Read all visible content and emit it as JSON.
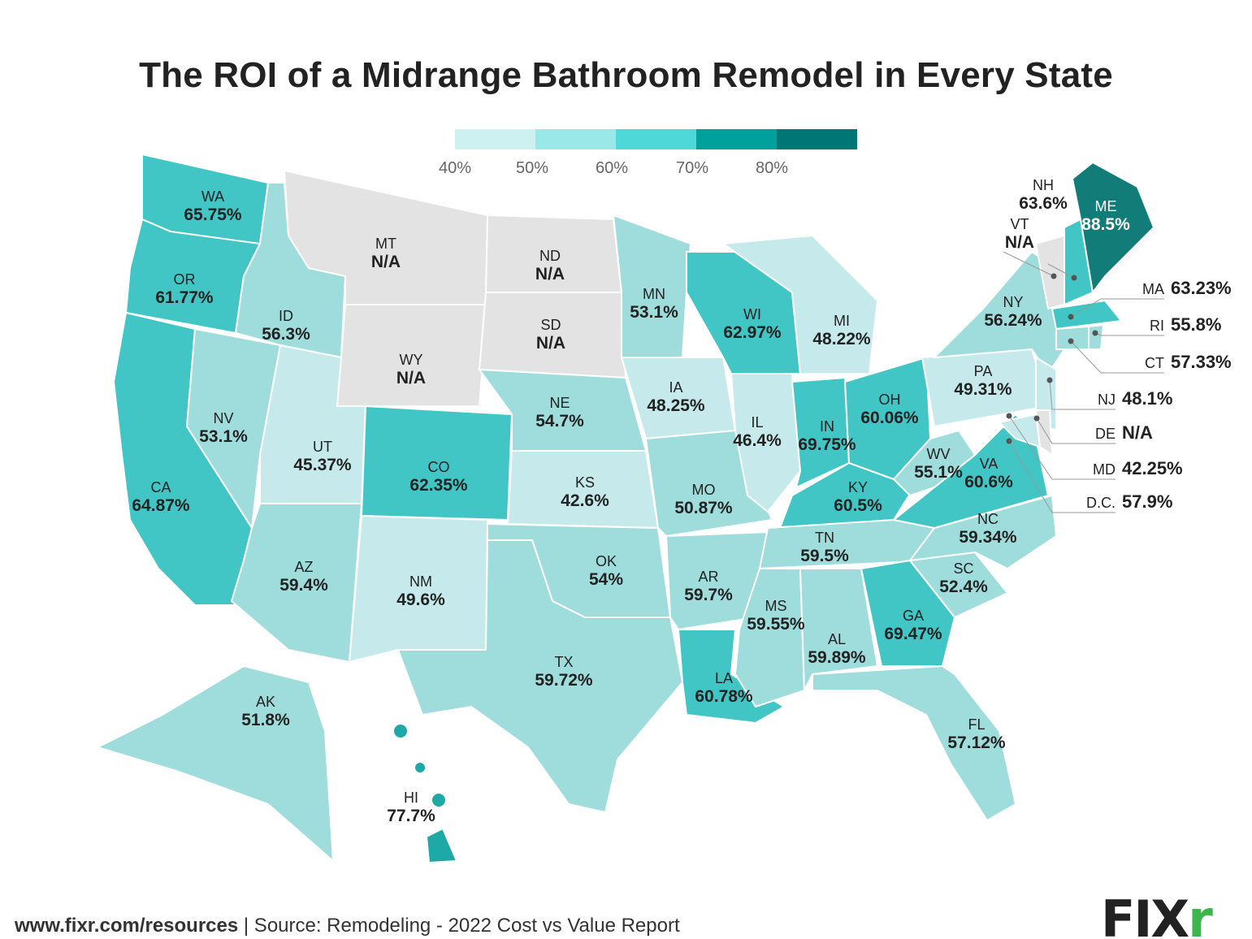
{
  "title": "The ROI of a Midrange Bathroom Remodel in Every State",
  "legend": {
    "labels": [
      "40%",
      "50%",
      "60%",
      "70%",
      "80%"
    ],
    "colors": [
      "#cdf1f1",
      "#9ae8e8",
      "#4fd8d8",
      "#00a09c",
      "#007676"
    ],
    "na_color": "#e3e3e3"
  },
  "states": {
    "WA": {
      "abbr": "WA",
      "value": "65.75%",
      "num": 65.75
    },
    "OR": {
      "abbr": "OR",
      "value": "61.77%",
      "num": 61.77
    },
    "CA": {
      "abbr": "CA",
      "value": "64.87%",
      "num": 64.87
    },
    "NV": {
      "abbr": "NV",
      "value": "53.1%",
      "num": 53.1
    },
    "ID": {
      "abbr": "ID",
      "value": "56.3%",
      "num": 56.3
    },
    "MT": {
      "abbr": "MT",
      "value": "N/A",
      "num": null
    },
    "WY": {
      "abbr": "WY",
      "value": "N/A",
      "num": null
    },
    "UT": {
      "abbr": "UT",
      "value": "45.37%",
      "num": 45.37
    },
    "CO": {
      "abbr": "CO",
      "value": "62.35%",
      "num": 62.35
    },
    "AZ": {
      "abbr": "AZ",
      "value": "59.4%",
      "num": 59.4
    },
    "NM": {
      "abbr": "NM",
      "value": "49.6%",
      "num": 49.6
    },
    "ND": {
      "abbr": "ND",
      "value": "N/A",
      "num": null
    },
    "SD": {
      "abbr": "SD",
      "value": "N/A",
      "num": null
    },
    "NE": {
      "abbr": "NE",
      "value": "54.7%",
      "num": 54.7
    },
    "KS": {
      "abbr": "KS",
      "value": "42.6%",
      "num": 42.6
    },
    "OK": {
      "abbr": "OK",
      "value": "54%",
      "num": 54
    },
    "TX": {
      "abbr": "TX",
      "value": "59.72%",
      "num": 59.72
    },
    "MN": {
      "abbr": "MN",
      "value": "53.1%",
      "num": 53.1
    },
    "IA": {
      "abbr": "IA",
      "value": "48.25%",
      "num": 48.25
    },
    "MO": {
      "abbr": "MO",
      "value": "50.87%",
      "num": 50.87
    },
    "AR": {
      "abbr": "AR",
      "value": "59.7%",
      "num": 59.7
    },
    "LA": {
      "abbr": "LA",
      "value": "60.78%",
      "num": 60.78
    },
    "WI": {
      "abbr": "WI",
      "value": "62.97%",
      "num": 62.97
    },
    "IL": {
      "abbr": "IL",
      "value": "46.4%",
      "num": 46.4
    },
    "MI": {
      "abbr": "MI",
      "value": "48.22%",
      "num": 48.22
    },
    "IN": {
      "abbr": "IN",
      "value": "69.75%",
      "num": 69.75
    },
    "OH": {
      "abbr": "OH",
      "value": "60.06%",
      "num": 60.06
    },
    "KY": {
      "abbr": "KY",
      "value": "60.5%",
      "num": 60.5
    },
    "TN": {
      "abbr": "TN",
      "value": "59.5%",
      "num": 59.5
    },
    "MS": {
      "abbr": "MS",
      "value": "59.55%",
      "num": 59.55
    },
    "AL": {
      "abbr": "AL",
      "value": "59.89%",
      "num": 59.89
    },
    "GA": {
      "abbr": "GA",
      "value": "69.47%",
      "num": 69.47
    },
    "FL": {
      "abbr": "FL",
      "value": "57.12%",
      "num": 57.12
    },
    "SC": {
      "abbr": "SC",
      "value": "52.4%",
      "num": 52.4
    },
    "NC": {
      "abbr": "NC",
      "value": "59.34%",
      "num": 59.34
    },
    "VA": {
      "abbr": "VA",
      "value": "60.6%",
      "num": 60.6
    },
    "WV": {
      "abbr": "WV",
      "value": "55.1%",
      "num": 55.1
    },
    "PA": {
      "abbr": "PA",
      "value": "49.31%",
      "num": 49.31
    },
    "NY": {
      "abbr": "NY",
      "value": "56.24%",
      "num": 56.24
    },
    "NH": {
      "abbr": "NH",
      "value": "63.6%",
      "num": 63.6
    },
    "VT": {
      "abbr": "VT",
      "value": "N/A",
      "num": null
    },
    "ME": {
      "abbr": "ME",
      "value": "88.5%",
      "num": 88.5
    },
    "AK": {
      "abbr": "AK",
      "value": "51.8%",
      "num": 51.8
    },
    "HI": {
      "abbr": "HI",
      "value": "77.7%",
      "num": 77.7
    },
    "MA": {
      "abbr": "MA",
      "value": "63.23%",
      "num": 63.23
    },
    "RI": {
      "abbr": "RI",
      "value": "55.8%",
      "num": 55.8
    },
    "CT": {
      "abbr": "CT",
      "value": "57.33%",
      "num": 57.33
    },
    "NJ": {
      "abbr": "NJ",
      "value": "48.1%",
      "num": 48.1
    },
    "DE": {
      "abbr": "DE",
      "value": "N/A",
      "num": null
    },
    "MD": {
      "abbr": "MD",
      "value": "42.25%",
      "num": 42.25
    },
    "DC": {
      "abbr": "D.C.",
      "value": "57.9%",
      "num": 57.9
    }
  },
  "footer": {
    "url": "www.fixr.com/resources",
    "source": " | Source: Remodeling - 2022 Cost vs Value Report"
  },
  "logo": {
    "text_main": "FIX",
    "text_accent": "r"
  }
}
